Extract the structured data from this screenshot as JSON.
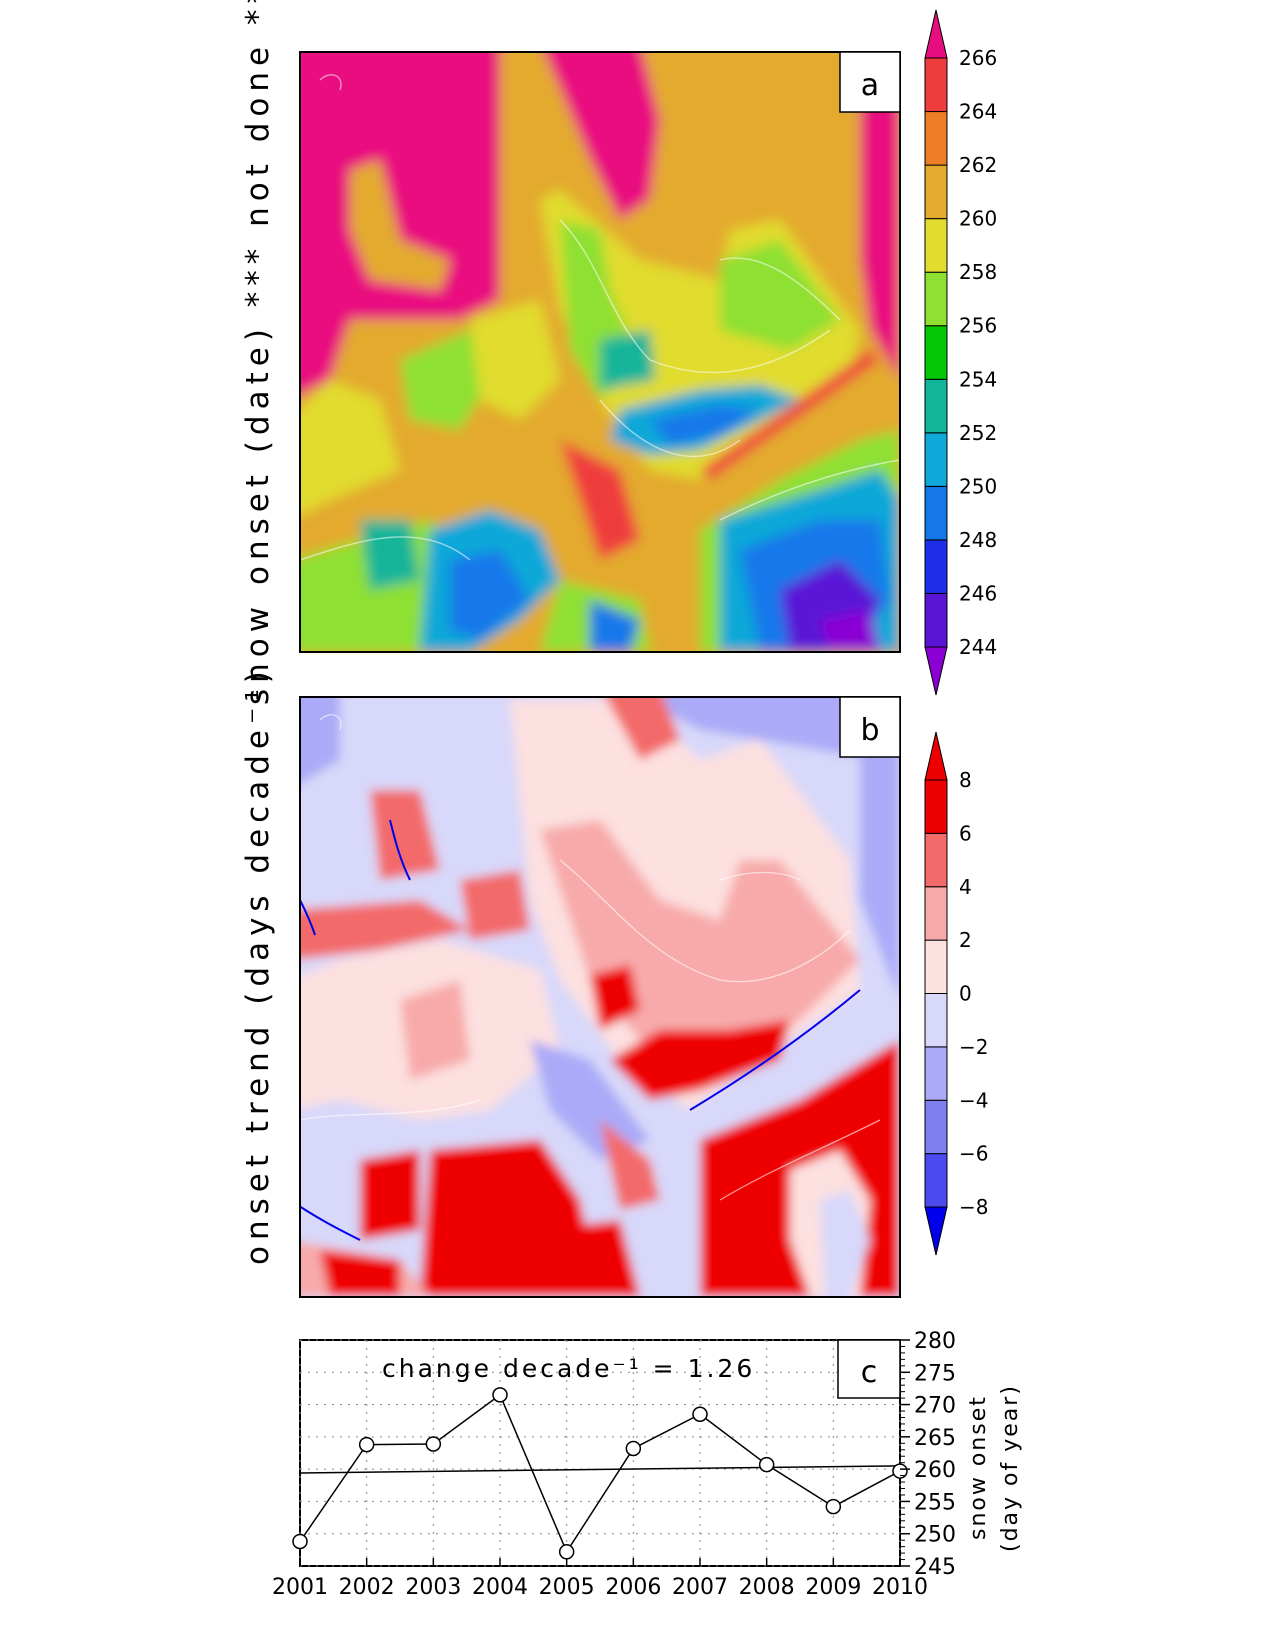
{
  "left_label_a": "snow onset (date) *** not done ***",
  "left_label_b": "onset trend (days decade⁻¹)",
  "panel_a": {
    "tag": "a"
  },
  "panel_b": {
    "tag": "b"
  },
  "colorbar_a": {
    "ticks": [
      "244",
      "246",
      "248",
      "250",
      "252",
      "254",
      "256",
      "258",
      "260",
      "262",
      "264",
      "266"
    ],
    "colors": [
      "#8a00d4",
      "#5a14d6",
      "#1f2ee6",
      "#1478ea",
      "#10a8d8",
      "#13b59a",
      "#07c807",
      "#8ee032",
      "#e1dc2e",
      "#e3aa2e",
      "#ee7d27",
      "#ef3c3c",
      "#e90e7f"
    ]
  },
  "colorbar_b": {
    "ticks": [
      "−8",
      "−6",
      "−4",
      "−2",
      "0",
      "2",
      "4",
      "6",
      "8"
    ],
    "colors": [
      "#0000ee",
      "#4a4aee",
      "#8080f0",
      "#aaaaf8",
      "#d8d8fa",
      "#fde0e0",
      "#f8aaaa",
      "#f36a6a",
      "#ee0000",
      "#ee0000"
    ]
  },
  "chart_data": {
    "type": "line",
    "tag": "c",
    "annotation": "change decade⁻¹ = 1.26",
    "x": [
      2001,
      2002,
      2003,
      2004,
      2005,
      2006,
      2007,
      2008,
      2009,
      2010
    ],
    "values": [
      248.8,
      263.8,
      263.9,
      271.5,
      247.2,
      263.2,
      268.5,
      260.7,
      254.2,
      259.7
    ],
    "trend_line": {
      "start": 259.4,
      "end": 260.5
    },
    "xlim": [
      2001,
      2010
    ],
    "ylim": [
      245,
      280
    ],
    "yticks": [
      "245",
      "250",
      "255",
      "260",
      "265",
      "270",
      "275",
      "280"
    ],
    "xticks": [
      "2001",
      "2002",
      "2003",
      "2004",
      "2005",
      "2006",
      "2007",
      "2008",
      "2009",
      "2010"
    ],
    "ylabel_line1": "snow onset",
    "ylabel_line2": "(day of year)",
    "grid": true
  }
}
